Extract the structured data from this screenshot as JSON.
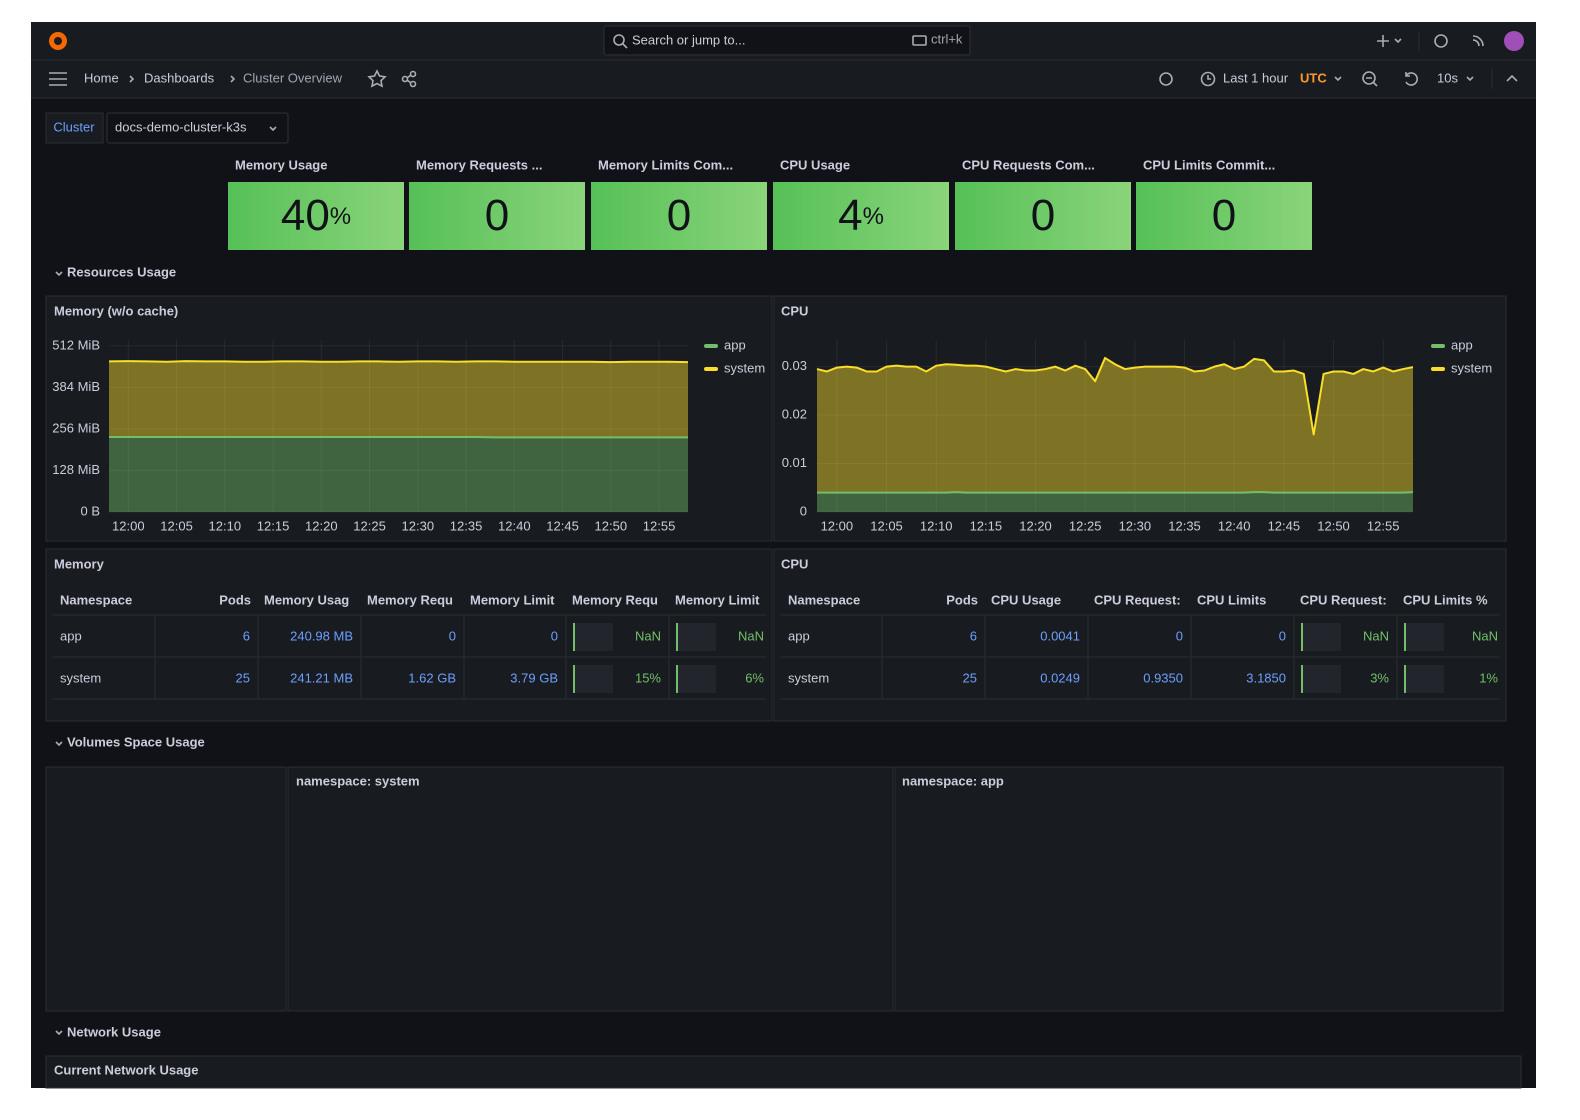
{
  "header": {
    "search": "Search or jump to...",
    "shortcut": "ctrl+k"
  },
  "nav": {
    "breadcrumbs": [
      "Home",
      "Dashboards",
      "Cluster Overview"
    ],
    "time_range": "Last 1 hour",
    "timezone": "UTC",
    "refresh": "10s"
  },
  "variable": {
    "label": "Cluster",
    "value": "docs-demo-cluster-k3s"
  },
  "stats": [
    {
      "title": "Memory Usage",
      "value": 40,
      "unit": "%"
    },
    {
      "title": "Memory Requests ...",
      "value": 0
    },
    {
      "title": "Memory Limits Com...",
      "value": 0
    },
    {
      "title": "CPU Usage",
      "value": 4,
      "unit": "%"
    },
    {
      "title": "CPU Requests Com...",
      "value": 0
    },
    {
      "title": "CPU Limits Commit...",
      "value": 0
    }
  ],
  "rows": [
    "Resources Usage",
    "Volumes Space Usage",
    "Network Usage"
  ],
  "chart_data": [
    {
      "type": "area",
      "stacked": true,
      "title": "Memory (w/o cache)",
      "x": [
        "11:58",
        "12:00",
        "12:02",
        "12:04",
        "12:06",
        "12:08",
        "12:10",
        "12:12",
        "12:14",
        "12:16",
        "12:18",
        "12:20",
        "12:22",
        "12:24",
        "12:26",
        "12:28",
        "12:30",
        "12:32",
        "12:34",
        "12:36",
        "12:38",
        "12:40",
        "12:42",
        "12:44",
        "12:46",
        "12:48",
        "12:50",
        "12:52",
        "12:54",
        "12:56",
        "12:58"
      ],
      "xlim": [
        "11:58",
        "12:58"
      ],
      "xticks": [
        "12:00",
        "12:05",
        "12:10",
        "12:15",
        "12:20",
        "12:25",
        "12:30",
        "12:35",
        "12:40",
        "12:45",
        "12:50",
        "12:55"
      ],
      "ylim": [
        0,
        530
      ],
      "yticks": [
        {
          "value": 0,
          "label": "0 B"
        },
        {
          "value": 128,
          "label": "128 MiB"
        },
        {
          "value": 256,
          "label": "256 MiB"
        },
        {
          "value": 384,
          "label": "384 MiB"
        },
        {
          "value": 512,
          "label": "512 MiB"
        }
      ],
      "grid": true,
      "series": [
        {
          "name": "app",
          "color": "#73bf69",
          "values": [
            231,
            231,
            231,
            231,
            231,
            231,
            231,
            231,
            231,
            231,
            231,
            231,
            231,
            231,
            231,
            231,
            231,
            231,
            231,
            231,
            230,
            230,
            230,
            230,
            230,
            230,
            230,
            230,
            230,
            230,
            230
          ]
        },
        {
          "name": "system",
          "color": "#fade2a",
          "values": [
            233,
            234,
            233,
            232,
            234,
            233,
            233,
            232,
            232,
            233,
            233,
            232,
            232,
            233,
            233,
            232,
            233,
            233,
            232,
            233,
            234,
            233,
            233,
            233,
            233,
            233,
            232,
            233,
            233,
            233,
            232
          ]
        }
      ]
    },
    {
      "type": "area",
      "stacked": true,
      "title": "CPU",
      "x": [
        "11:58",
        "11:59",
        "12:00",
        "12:01",
        "12:02",
        "12:03",
        "12:04",
        "12:05",
        "12:06",
        "12:07",
        "12:08",
        "12:09",
        "12:10",
        "12:11",
        "12:12",
        "12:13",
        "12:14",
        "12:15",
        "12:16",
        "12:17",
        "12:18",
        "12:19",
        "12:20",
        "12:21",
        "12:22",
        "12:23",
        "12:24",
        "12:25",
        "12:26",
        "12:27",
        "12:28",
        "12:29",
        "12:30",
        "12:31",
        "12:32",
        "12:33",
        "12:34",
        "12:35",
        "12:36",
        "12:37",
        "12:38",
        "12:39",
        "12:40",
        "12:41",
        "12:42",
        "12:43",
        "12:44",
        "12:45",
        "12:46",
        "12:47",
        "12:48",
        "12:49",
        "12:50",
        "12:51",
        "12:52",
        "12:53",
        "12:54",
        "12:55",
        "12:56",
        "12:57",
        "12:58"
      ],
      "xlim": [
        "11:58",
        "12:58"
      ],
      "xticks": [
        "12:00",
        "12:05",
        "12:10",
        "12:15",
        "12:20",
        "12:25",
        "12:30",
        "12:35",
        "12:40",
        "12:45",
        "12:50",
        "12:55"
      ],
      "ylim": [
        0,
        0.0355
      ],
      "yticks": [
        0,
        0.01,
        0.02,
        0.03
      ],
      "grid": true,
      "series": [
        {
          "name": "app",
          "color": "#73bf69",
          "values": [
            0.004,
            0.004,
            0.004,
            0.004,
            0.004,
            0.004,
            0.004,
            0.004,
            0.004,
            0.004,
            0.004,
            0.004,
            0.004,
            0.004,
            0.0041,
            0.004,
            0.004,
            0.004,
            0.004,
            0.004,
            0.004,
            0.004,
            0.004,
            0.004,
            0.004,
            0.004,
            0.004,
            0.004,
            0.004,
            0.004,
            0.004,
            0.004,
            0.004,
            0.004,
            0.004,
            0.004,
            0.004,
            0.004,
            0.004,
            0.004,
            0.004,
            0.004,
            0.004,
            0.004,
            0.0041,
            0.0041,
            0.004,
            0.004,
            0.004,
            0.004,
            0.004,
            0.004,
            0.004,
            0.004,
            0.004,
            0.004,
            0.004,
            0.004,
            0.004,
            0.004,
            0.0041
          ]
        },
        {
          "name": "system",
          "color": "#fade2a",
          "values": [
            0.0255,
            0.025,
            0.0258,
            0.026,
            0.0258,
            0.025,
            0.025,
            0.026,
            0.0262,
            0.026,
            0.026,
            0.025,
            0.0262,
            0.0265,
            0.0263,
            0.0262,
            0.0262,
            0.026,
            0.0255,
            0.025,
            0.0255,
            0.0252,
            0.0252,
            0.0255,
            0.026,
            0.0252,
            0.0262,
            0.0255,
            0.023,
            0.0278,
            0.0265,
            0.0255,
            0.0258,
            0.026,
            0.026,
            0.026,
            0.026,
            0.0258,
            0.025,
            0.0252,
            0.026,
            0.0265,
            0.0255,
            0.026,
            0.0275,
            0.0272,
            0.025,
            0.025,
            0.0252,
            0.0245,
            0.012,
            0.0245,
            0.025,
            0.025,
            0.0245,
            0.0255,
            0.025,
            0.0258,
            0.025,
            0.0255,
            0.0258
          ]
        }
      ]
    }
  ],
  "tables": [
    {
      "title": "Memory",
      "columns": [
        "Namespace",
        "Pods",
        "Memory Usag",
        "Memory Requ",
        "Memory Limit",
        "Memory Requ",
        "Memory Limit"
      ],
      "rows": [
        [
          "app",
          "6",
          "240.98 MB",
          "0",
          "0",
          "NaN",
          "NaN"
        ],
        [
          "system",
          "25",
          "241.21 MB",
          "1.62 GB",
          "3.79 GB",
          "15%",
          "6%"
        ]
      ]
    },
    {
      "title": "CPU",
      "columns": [
        "Namespace",
        "Pods",
        "CPU Usage",
        "CPU Request:",
        "CPU Limits",
        "CPU Request:",
        "CPU Limits %"
      ],
      "rows": [
        [
          "app",
          "6",
          "0.0041",
          "0",
          "0",
          "NaN",
          "NaN"
        ],
        [
          "system",
          "25",
          "0.0249",
          "0.9350",
          "3.1850",
          "3%",
          "1%"
        ]
      ]
    }
  ],
  "volume_panels": [
    "namespace: system",
    "namespace: app"
  ],
  "network_panel": "Current Network Usage"
}
